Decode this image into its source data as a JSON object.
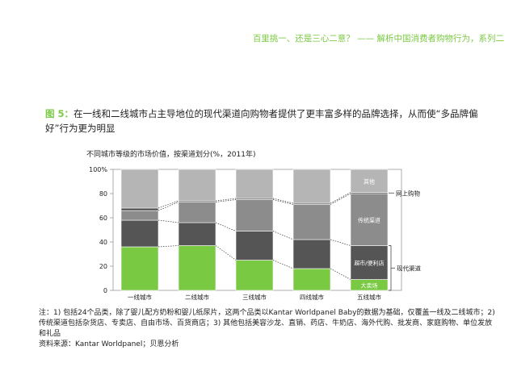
{
  "header": {
    "prefix": "百里挑一、还是三心二意？",
    "dash": "——",
    "rest": "解析中国消费者购物行为，系列二"
  },
  "figure": {
    "label": "图 5：",
    "title": "在一线和二线城市占主导地位的现代渠道向购物者提供了更丰富多样的品牌选择，从而使“多品牌偏好”行为更为明显"
  },
  "chart_data": {
    "type": "bar",
    "title": "不同城市等级的市场价值，按渠道划分(%，2011年)",
    "categories": [
      "一线城市",
      "二线城市",
      "三线城市",
      "四线城市",
      "五线城市"
    ],
    "yticks": [
      "0",
      "20",
      "40",
      "60",
      "80",
      "100%"
    ],
    "ylim": [
      0,
      100
    ],
    "series": [
      {
        "name": "大卖场",
        "color": "#7ac943",
        "values": [
          36,
          37,
          25,
          18,
          9
        ]
      },
      {
        "name": "超市/便利店",
        "color": "#555555",
        "values": [
          22,
          19,
          24,
          24,
          28
        ]
      },
      {
        "name": "传统渠道",
        "color": "#8c8c8c",
        "values": [
          8,
          17,
          26,
          29,
          43
        ]
      },
      {
        "name": "网上购物",
        "color": "#4a4a4a",
        "values": [
          2,
          1,
          1,
          1,
          1
        ]
      },
      {
        "name": "其他",
        "color": "#b5b5b5",
        "values": [
          32,
          26,
          24,
          28,
          19
        ]
      }
    ],
    "annotations": {
      "online": "网上购物",
      "modern": "现代渠道"
    }
  },
  "notes": {
    "line1": "注：1) 包括24个品类，除了婴儿配方奶粉和婴儿纸尿片，这两个品类以Kantar Worldpanel Baby的数据为基础，仅覆盖一线及二线城市；2) 传统渠道包括杂货店、专卖店、自由市场、百货商店；3) 其他包括美容沙龙、直销、药店、牛奶店、海外代购、批发商、家庭购物、单位发放和礼品",
    "source": "资料来源：Kantar Worldpanel；贝恩分析"
  }
}
